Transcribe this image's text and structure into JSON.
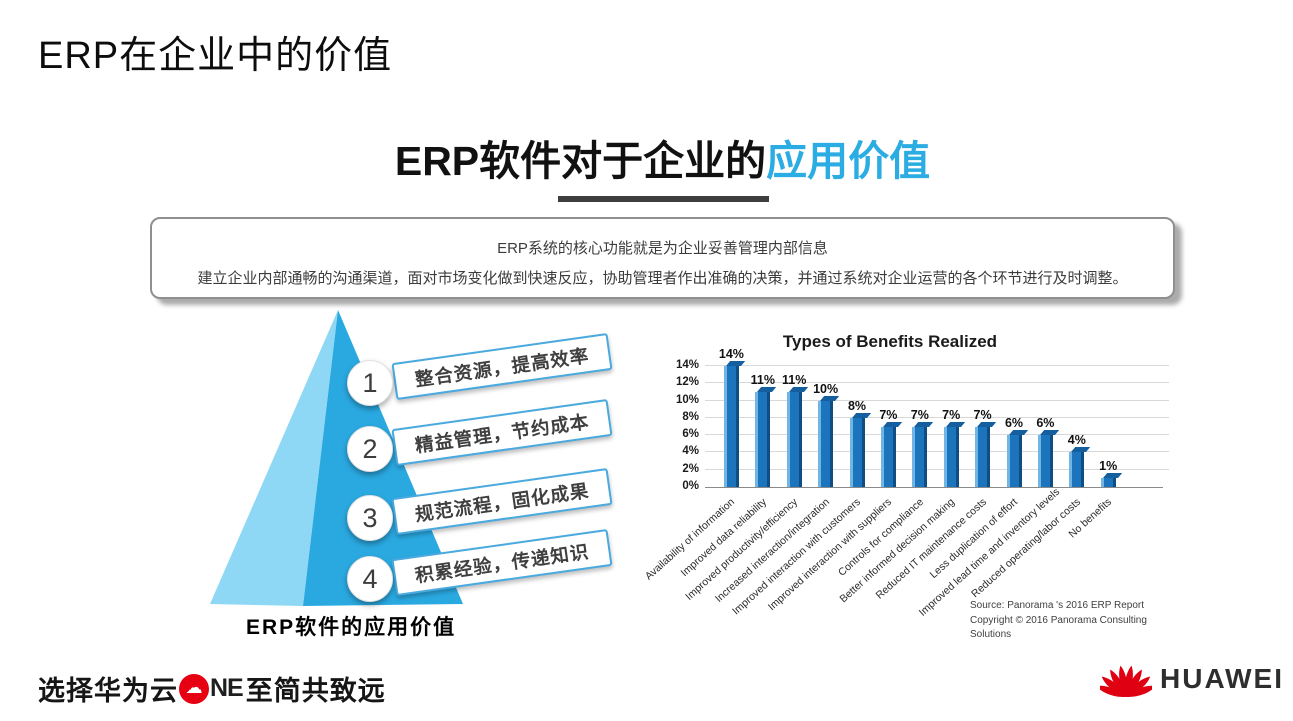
{
  "slide": {
    "title": "ERP在企业中的价值",
    "heading": {
      "black": "ERP软件对于企业的",
      "blue": "应用价值",
      "blue_color": "#2BACE2"
    },
    "info_card": {
      "line1": "ERP系统的核心功能就是为企业妥善管理内部信息",
      "line2": "建立企业内部通畅的沟通渠道，面对市场变化做到快速反应，协助管理者作出准确的决策，并通过系统对企业运营的各个环节进行及时调整。"
    }
  },
  "pyramid": {
    "caption": "ERP软件的应用价值",
    "colors": {
      "left_face": "#8ED8F6",
      "right_face": "#2AA9E1"
    },
    "items": [
      {
        "num": "1",
        "label": "整合资源，提高效率"
      },
      {
        "num": "2",
        "label": "精益管理，节约成本"
      },
      {
        "num": "3",
        "label": "规范流程，固化成果"
      },
      {
        "num": "4",
        "label": "积累经验，传递知识"
      }
    ]
  },
  "chart_data": {
    "type": "bar",
    "title": "Types of Benefits Realized",
    "categories": [
      "Availability of information",
      "Improved data reliability",
      "Improved productivity/efficiency",
      "Increased interaction/integration",
      "Improved interaction with customers",
      "Improved interaction with suppliers",
      "Controls for compliance",
      "Better informed decision making",
      "Reduced IT maintenance costs",
      "Less duplication of effort",
      "Improved lead time and inventory levels",
      "Reduced operating/labor costs",
      "No benefits"
    ],
    "values": [
      14,
      11,
      11,
      10,
      8,
      7,
      7,
      7,
      7,
      6,
      6,
      4,
      1
    ],
    "value_labels": [
      "14%",
      "11%",
      "11%",
      "10%",
      "8%",
      "7%",
      "7%",
      "7%",
      "7%",
      "6%",
      "6%",
      "4%",
      "1%"
    ],
    "ytick_labels": [
      "0%",
      "2%",
      "4%",
      "6%",
      "8%",
      "10%",
      "12%",
      "14%"
    ],
    "ylim": [
      0,
      14
    ],
    "grid": true,
    "legend": "none",
    "bar_color": "#1B74BC",
    "source_line1": "Source: Panorama 's 2016 ERP Report",
    "source_line2": "Copyright © 2016 Panorama Consulting Solutions"
  },
  "footer": {
    "left_prefix": "选择华为云",
    "one_cloud_icon": "cloud-icon",
    "one_logo_text": "NE",
    "left_suffix": "至简共致远",
    "huawei_label": "HUAWEI",
    "brand_red": "#E2001A"
  }
}
